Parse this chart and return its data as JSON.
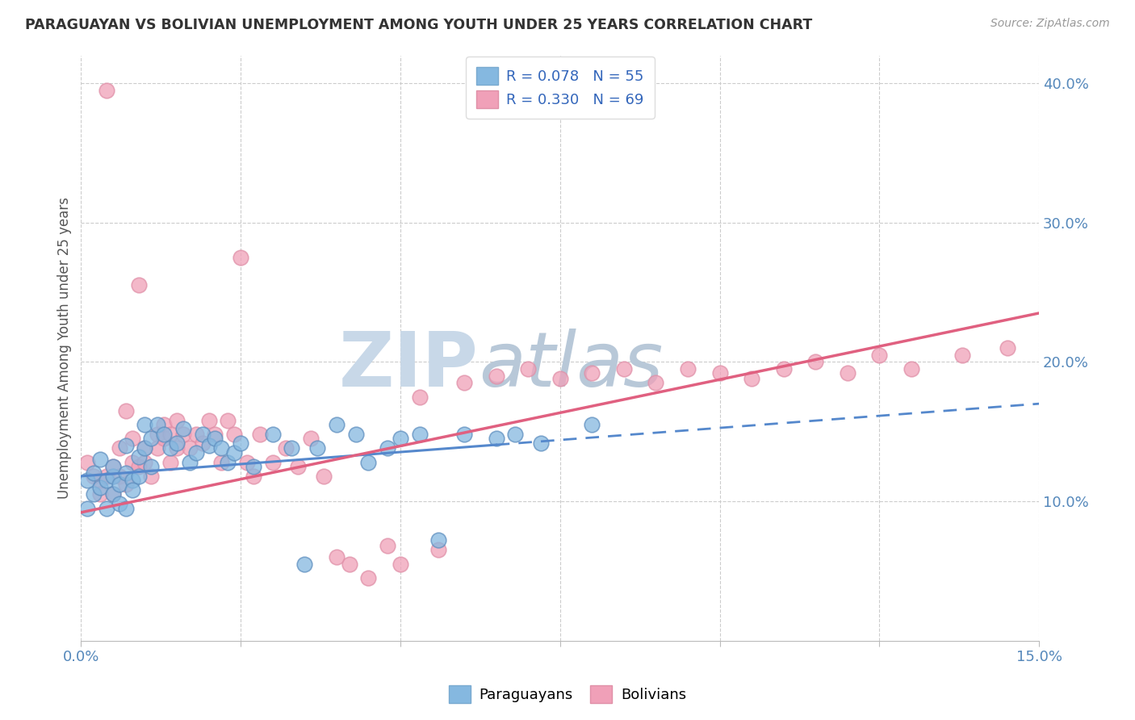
{
  "title": "PARAGUAYAN VS BOLIVIAN UNEMPLOYMENT AMONG YOUTH UNDER 25 YEARS CORRELATION CHART",
  "source": "Source: ZipAtlas.com",
  "ylabel": "Unemployment Among Youth under 25 years",
  "xlim": [
    0.0,
    0.15
  ],
  "ylim": [
    0.0,
    0.42
  ],
  "xtick_vals": [
    0.0,
    0.025,
    0.05,
    0.075,
    0.1,
    0.125,
    0.15
  ],
  "xticklabels": [
    "0.0%",
    "",
    "",
    "",
    "",
    "",
    "15.0%"
  ],
  "yticks_right": [
    0.1,
    0.2,
    0.3,
    0.4
  ],
  "ytick_right_labels": [
    "10.0%",
    "20.0%",
    "30.0%",
    "40.0%"
  ],
  "paraguayans_color": "#85B8E0",
  "bolivians_color": "#F0A0B8",
  "trend_paraguayan_color": "#5588CC",
  "trend_bolivian_color": "#E06080",
  "R_paraguayan": 0.078,
  "N_paraguayan": 55,
  "R_bolivian": 0.33,
  "N_bolivian": 69,
  "paraguayans_x": [
    0.001,
    0.001,
    0.002,
    0.002,
    0.003,
    0.003,
    0.004,
    0.004,
    0.005,
    0.005,
    0.005,
    0.006,
    0.006,
    0.007,
    0.007,
    0.007,
    0.008,
    0.008,
    0.009,
    0.009,
    0.01,
    0.01,
    0.011,
    0.011,
    0.012,
    0.013,
    0.014,
    0.015,
    0.016,
    0.017,
    0.018,
    0.019,
    0.02,
    0.021,
    0.022,
    0.023,
    0.024,
    0.025,
    0.027,
    0.03,
    0.033,
    0.035,
    0.037,
    0.04,
    0.043,
    0.045,
    0.048,
    0.05,
    0.053,
    0.056,
    0.06,
    0.065,
    0.068,
    0.072,
    0.08
  ],
  "paraguayans_y": [
    0.115,
    0.095,
    0.12,
    0.105,
    0.13,
    0.11,
    0.115,
    0.095,
    0.118,
    0.105,
    0.125,
    0.112,
    0.098,
    0.14,
    0.12,
    0.095,
    0.115,
    0.108,
    0.118,
    0.132,
    0.155,
    0.138,
    0.145,
    0.125,
    0.155,
    0.148,
    0.138,
    0.142,
    0.152,
    0.128,
    0.135,
    0.148,
    0.14,
    0.145,
    0.138,
    0.128,
    0.135,
    0.142,
    0.125,
    0.148,
    0.138,
    0.055,
    0.138,
    0.155,
    0.148,
    0.128,
    0.138,
    0.145,
    0.148,
    0.072,
    0.148,
    0.145,
    0.148,
    0.142,
    0.155
  ],
  "bolivians_x": [
    0.001,
    0.002,
    0.003,
    0.003,
    0.004,
    0.004,
    0.005,
    0.005,
    0.006,
    0.006,
    0.007,
    0.007,
    0.008,
    0.008,
    0.009,
    0.009,
    0.01,
    0.01,
    0.011,
    0.012,
    0.012,
    0.013,
    0.013,
    0.014,
    0.014,
    0.015,
    0.015,
    0.016,
    0.017,
    0.018,
    0.019,
    0.02,
    0.021,
    0.022,
    0.023,
    0.024,
    0.025,
    0.026,
    0.027,
    0.028,
    0.03,
    0.032,
    0.034,
    0.036,
    0.038,
    0.04,
    0.042,
    0.045,
    0.048,
    0.05,
    0.053,
    0.056,
    0.06,
    0.065,
    0.07,
    0.075,
    0.08,
    0.085,
    0.09,
    0.095,
    0.1,
    0.105,
    0.11,
    0.115,
    0.12,
    0.125,
    0.13,
    0.138,
    0.145
  ],
  "bolivians_y": [
    0.128,
    0.118,
    0.115,
    0.105,
    0.395,
    0.118,
    0.105,
    0.125,
    0.118,
    0.138,
    0.112,
    0.165,
    0.128,
    0.145,
    0.125,
    0.255,
    0.138,
    0.128,
    0.118,
    0.148,
    0.138,
    0.155,
    0.145,
    0.148,
    0.128,
    0.158,
    0.138,
    0.148,
    0.138,
    0.148,
    0.142,
    0.158,
    0.148,
    0.128,
    0.158,
    0.148,
    0.275,
    0.128,
    0.118,
    0.148,
    0.128,
    0.138,
    0.125,
    0.145,
    0.118,
    0.06,
    0.055,
    0.045,
    0.068,
    0.055,
    0.175,
    0.065,
    0.185,
    0.19,
    0.195,
    0.188,
    0.192,
    0.195,
    0.185,
    0.195,
    0.192,
    0.188,
    0.195,
    0.2,
    0.192,
    0.205,
    0.195,
    0.205,
    0.21
  ],
  "trend_py_x0": 0.0,
  "trend_py_y0": 0.118,
  "trend_py_x1": 0.15,
  "trend_py_y1": 0.17,
  "trend_py_solid_end": 0.065,
  "trend_bo_x0": 0.0,
  "trend_bo_y0": 0.092,
  "trend_bo_x1": 0.15,
  "trend_bo_y1": 0.235,
  "background_color": "#FFFFFF",
  "grid_color": "#CCCCCC",
  "watermark_zip": "ZIP",
  "watermark_atlas": "atlas",
  "watermark_color_zip": "#C8D8E8",
  "watermark_color_atlas": "#B8C8D8"
}
